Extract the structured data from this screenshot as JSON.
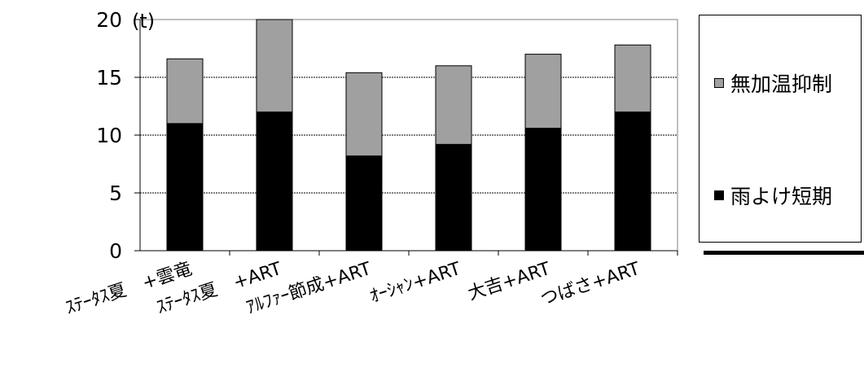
{
  "chart_data": {
    "type": "bar",
    "stacked": true,
    "unit": "(t)",
    "categories": [
      "ｽﾃｰﾀｽ夏　+雲竜",
      "ｽﾃｰﾀｽ夏　+ART",
      "ｱﾙﾌｧｰ節成+ART",
      "ｵｰｼｬﾝ+ART",
      "大吉+ART",
      "つばさ+ART"
    ],
    "series": [
      {
        "name": "雨よけ短期",
        "color": "#000000",
        "values": [
          11.0,
          12.0,
          8.2,
          9.2,
          10.6,
          12.0
        ]
      },
      {
        "name": "無加温抑制",
        "color": "#a0a0a0",
        "values": [
          5.6,
          8.0,
          7.2,
          6.8,
          6.4,
          5.8
        ]
      }
    ],
    "ylim": [
      0,
      20
    ],
    "yticks": [
      0,
      5,
      10,
      15,
      20
    ],
    "grid": true,
    "legend_position": "right"
  }
}
